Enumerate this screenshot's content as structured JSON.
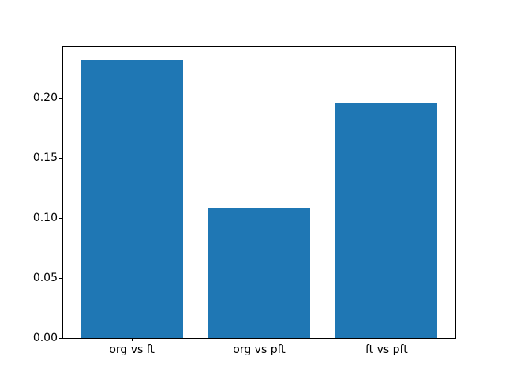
{
  "figure": {
    "background": "#ffffff",
    "frame_color": "#000000",
    "text_color": "#000000"
  },
  "chart_data": {
    "type": "bar",
    "title": "",
    "xlabel": "",
    "ylabel": "",
    "categories": [
      "org vs ft",
      "org vs pft",
      "ft vs pft"
    ],
    "values": [
      0.2315,
      0.108,
      0.1965
    ],
    "bar_color": "#1f77b4",
    "ylim": [
      0,
      0.243
    ],
    "yticks": [
      0.0,
      0.05,
      0.1,
      0.15,
      0.2
    ],
    "ytick_labels": [
      "0.00",
      "0.05",
      "0.10",
      "0.15",
      "0.20"
    ],
    "grid": false,
    "legend": null,
    "bar_width_fraction": 0.8
  }
}
